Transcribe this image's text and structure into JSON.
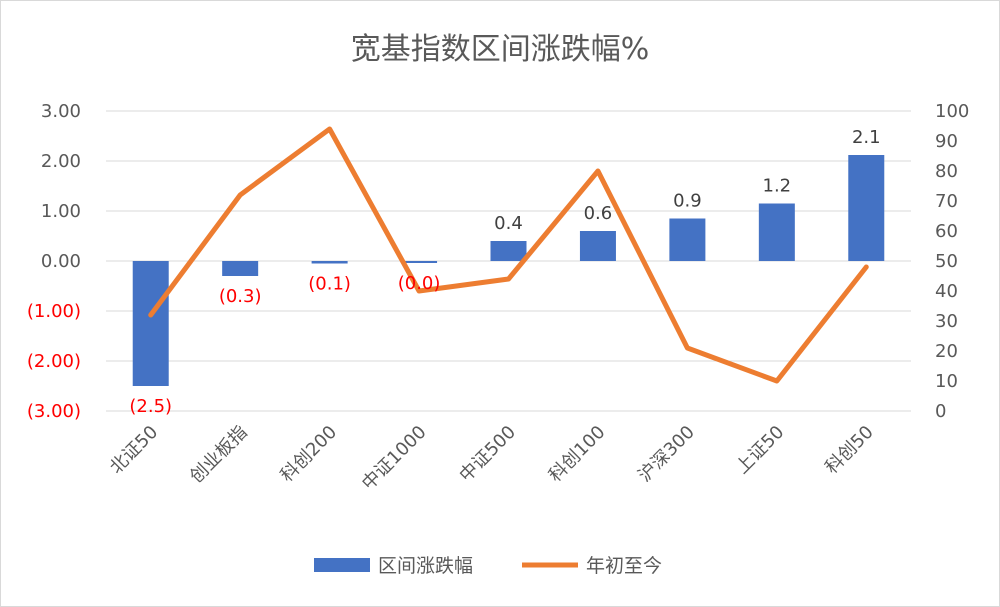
{
  "chart_data": {
    "type": "bar",
    "title": "宽基指数区间涨跌幅%",
    "categories": [
      "北证50",
      "创业板指",
      "科创200",
      "中证1000",
      "中证500",
      "科创100",
      "沪深300",
      "上证50",
      "科创50"
    ],
    "series": [
      {
        "name": "区间涨跌幅",
        "type": "bar",
        "axis": "left",
        "color": "#4472c4",
        "values": [
          -2.5,
          -0.3,
          -0.05,
          -0.04,
          0.4,
          0.6,
          0.85,
          1.15,
          2.12
        ],
        "data_labels": [
          "(2.5)",
          "(0.3)",
          "(0.1)",
          "(0.0)",
          "0.4",
          "0.6",
          "0.9",
          "1.2",
          "2.1"
        ]
      },
      {
        "name": "年初至今",
        "type": "line",
        "axis": "right",
        "color": "#ed7d31",
        "values": [
          32,
          72,
          94,
          40,
          44,
          80,
          21,
          10,
          48
        ]
      }
    ],
    "y_left": {
      "min": -3,
      "max": 3,
      "step": 1,
      "tick_labels": [
        "(3.00)",
        "(2.00)",
        "(1.00)",
        "0.00",
        "1.00",
        "2.00",
        "3.00"
      ],
      "negative_color": "#ff0000"
    },
    "y_right": {
      "min": 0,
      "max": 100,
      "step": 10,
      "tick_labels": [
        "0",
        "10",
        "20",
        "30",
        "40",
        "50",
        "60",
        "70",
        "80",
        "90",
        "100"
      ]
    },
    "grid": true,
    "legend": "bottom"
  }
}
